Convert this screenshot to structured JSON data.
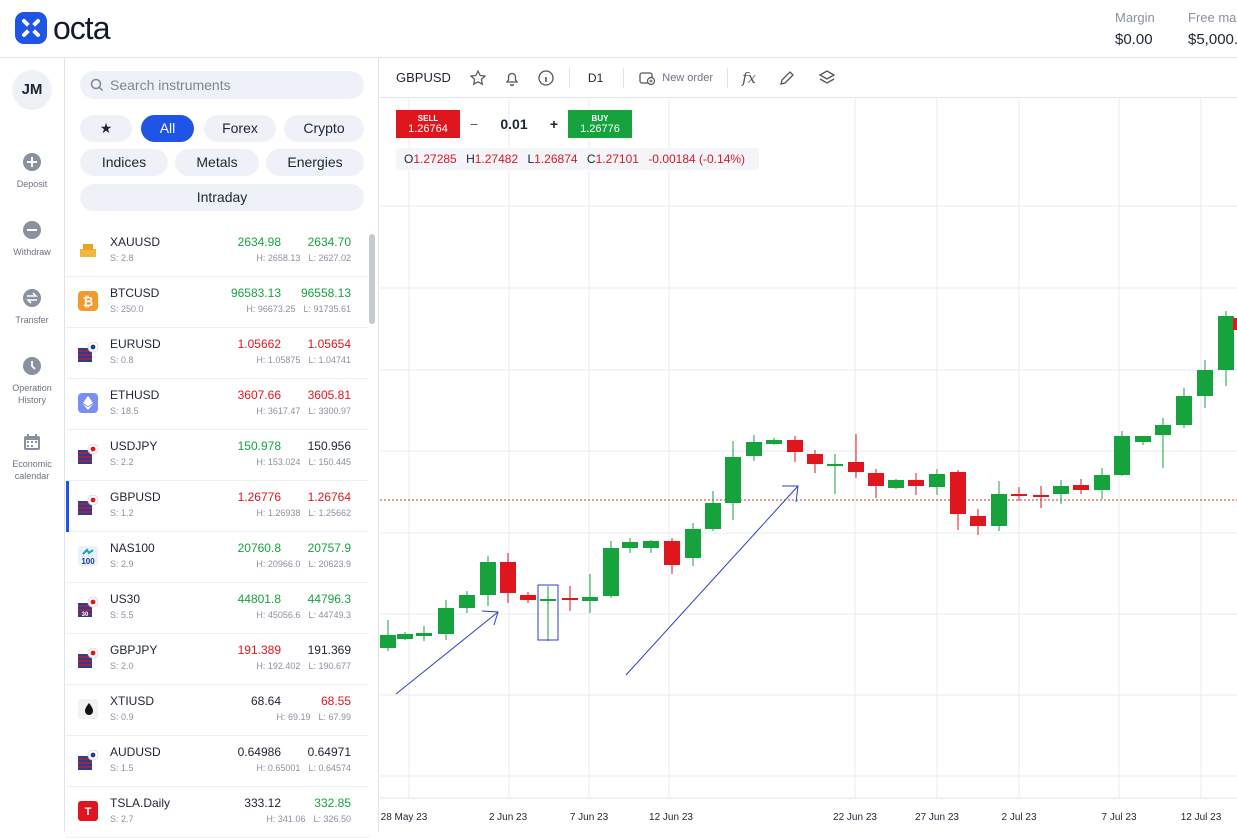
{
  "brand": {
    "name": "octa",
    "color": "#1f55e6"
  },
  "account": {
    "margin_label": "Margin",
    "margin_value": "$0.00",
    "free_label": "Free mar",
    "free_value": "$5,000."
  },
  "user": {
    "initials": "JM"
  },
  "nav": [
    {
      "label": "Deposit",
      "icon": "plus-circle-icon"
    },
    {
      "label": "Withdraw",
      "icon": "minus-circle-icon"
    },
    {
      "label": "Transfer",
      "icon": "transfer-icon"
    },
    {
      "label": "Operation History",
      "icon": "clock-icon"
    },
    {
      "label": "Economic calendar",
      "icon": "calendar-icon"
    }
  ],
  "search": {
    "placeholder": "Search instruments"
  },
  "filters": {
    "star": "★",
    "all": "All",
    "forex": "Forex",
    "crypto": "Crypto",
    "indices": "Indices",
    "metals": "Metals",
    "energies": "Energies",
    "intraday": "Intraday"
  },
  "instruments": [
    {
      "symbol": "XAUUSD",
      "spread": "S: 2.8",
      "bid": "2634.98",
      "ask": "2634.70",
      "high": "H: 2658.13",
      "low": "L: 2627.02",
      "bid_color": "g",
      "ask_color": "g",
      "icon": "gold-icon"
    },
    {
      "symbol": "BTCUSD",
      "spread": "S: 250.0",
      "bid": "96583.13",
      "ask": "96558.13",
      "high": "H: 96673.25",
      "low": "L: 91735.61",
      "bid_color": "g",
      "ask_color": "g",
      "icon": "bitcoin-icon"
    },
    {
      "symbol": "EURUSD",
      "spread": "S: 0.8",
      "bid": "1.05662",
      "ask": "1.05654",
      "high": "H: 1.05875",
      "low": "L: 1.04741",
      "bid_color": "r",
      "ask_color": "r",
      "icon": "eu-us-flag-icon"
    },
    {
      "symbol": "ETHUSD",
      "spread": "S: 18.5",
      "bid": "3607.66",
      "ask": "3605.81",
      "high": "H: 3617.47",
      "low": "L: 3300.97",
      "bid_color": "r",
      "ask_color": "r",
      "icon": "ethereum-icon"
    },
    {
      "symbol": "USDJPY",
      "spread": "S: 2.2",
      "bid": "150.978",
      "ask": "150.956",
      "high": "H: 153.024",
      "low": "L: 150.445",
      "bid_color": "g",
      "ask_color": "k",
      "icon": "us-jp-flag-icon"
    },
    {
      "symbol": "GBPUSD",
      "spread": "S: 1.2",
      "bid": "1.26776",
      "ask": "1.26764",
      "high": "H: 1.26938",
      "low": "L: 1.25662",
      "bid_color": "r",
      "ask_color": "r",
      "icon": "gb-us-flag-icon"
    },
    {
      "symbol": "NAS100",
      "spread": "S: 2.9",
      "bid": "20760.8",
      "ask": "20757.9",
      "high": "H: 20966.0",
      "low": "L: 20623.9",
      "bid_color": "g",
      "ask_color": "g",
      "icon": "nas100-icon"
    },
    {
      "symbol": "US30",
      "spread": "S: 5.5",
      "bid": "44801.8",
      "ask": "44796.3",
      "high": "H: 45056.6",
      "low": "L: 44749.3",
      "bid_color": "g",
      "ask_color": "g",
      "icon": "us30-icon"
    },
    {
      "symbol": "GBPJPY",
      "spread": "S: 2.0",
      "bid": "191.389",
      "ask": "191.369",
      "high": "H: 192.402",
      "low": "L: 190.677",
      "bid_color": "r",
      "ask_color": "k",
      "icon": "gb-jp-flag-icon"
    },
    {
      "symbol": "XTIUSD",
      "spread": "S: 0.9",
      "bid": "68.64",
      "ask": "68.55",
      "high": "H: 69.19",
      "low": "L: 67.99",
      "bid_color": "k",
      "ask_color": "r",
      "icon": "oil-drop-icon"
    },
    {
      "symbol": "AUDUSD",
      "spread": "S: 1.5",
      "bid": "0.64986",
      "ask": "0.64971",
      "high": "H: 0.65001",
      "low": "L: 0.64574",
      "bid_color": "k",
      "ask_color": "k",
      "icon": "au-us-flag-icon"
    },
    {
      "symbol": "TSLA.Daily",
      "spread": "S: 2.7",
      "bid": "333.12",
      "ask": "332.85",
      "high": "H: 341.06",
      "low": "L: 326.50",
      "bid_color": "k",
      "ask_color": "g",
      "icon": "tesla-icon"
    }
  ],
  "chart": {
    "symbol": "GBPUSD",
    "timeframe": "D1",
    "new_order": "New order",
    "sell_label": "SELL",
    "sell_price": "1.26764",
    "buy_label": "BUY",
    "buy_price": "1.26776",
    "lot": "0.01",
    "minus": "−",
    "plus": "+",
    "ohlc": {
      "o_label": "O",
      "o": "1.27285",
      "h_label": "H",
      "h": "1.27482",
      "l_label": "L",
      "l": "1.26874",
      "c_label": "C",
      "c": "1.27101",
      "change": "-0.00184 (-0.14%)"
    },
    "x_labels": [
      "28 May 23",
      "2 Jun 23",
      "7 Jun 23",
      "12 Jun 23",
      "22 Jun 23",
      "27 Jun 23",
      "2 Jul 23",
      "7 Jul 23",
      "12 Jul 23"
    ]
  }
}
